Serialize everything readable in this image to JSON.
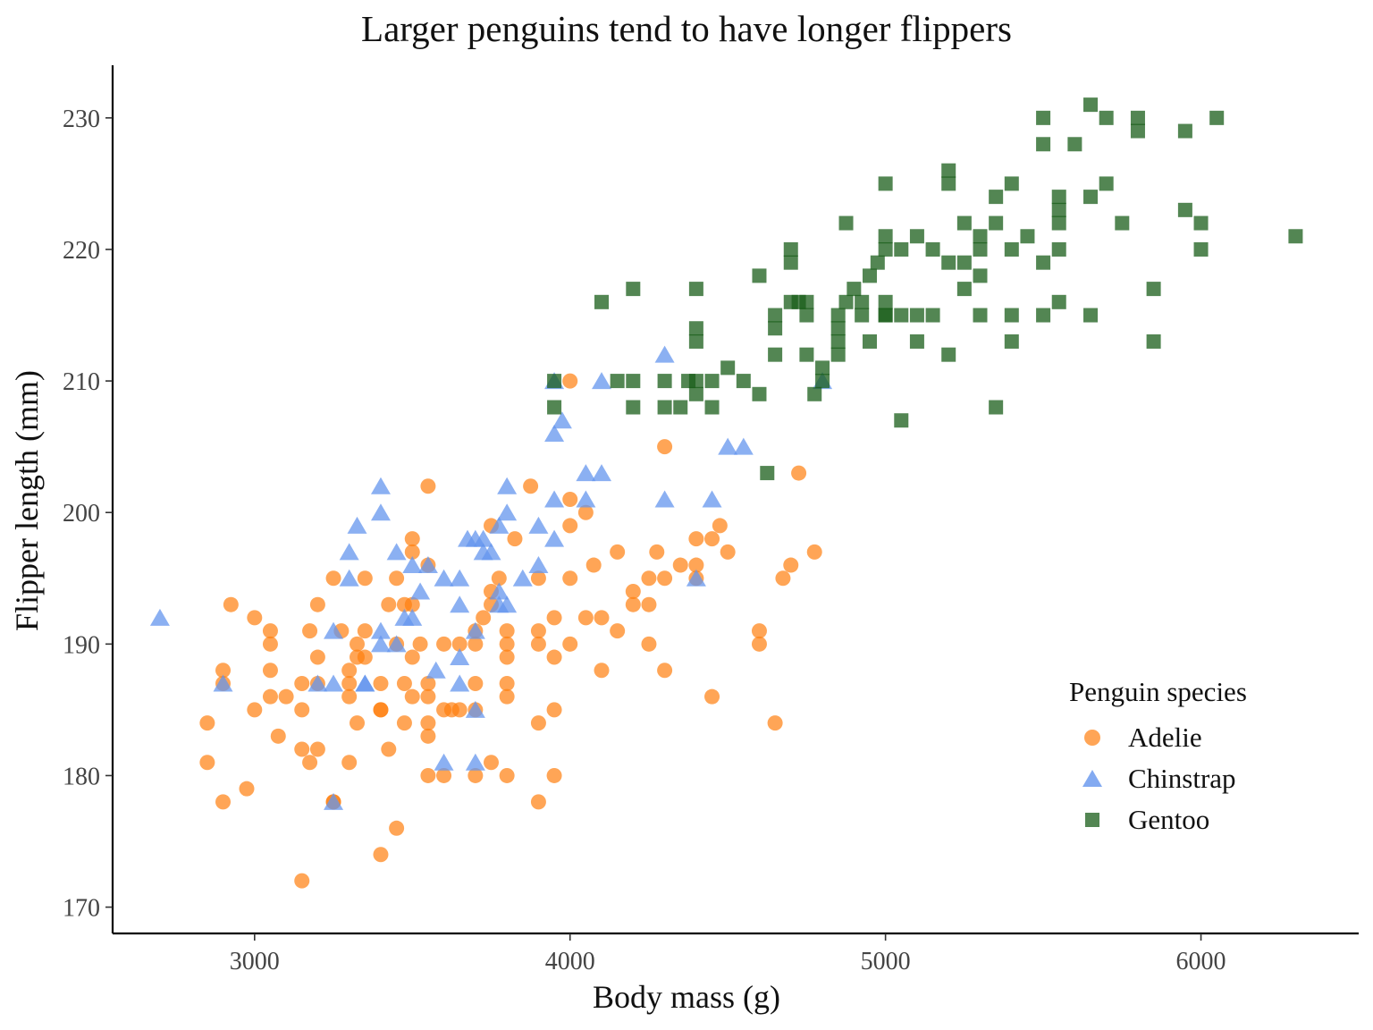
{
  "chart_data": {
    "type": "scatter",
    "title": "Larger penguins tend to have longer flippers",
    "xlabel": "Body mass (g)",
    "ylabel": "Flipper length (mm)",
    "xlim": [
      2550,
      6500
    ],
    "ylim": [
      168,
      234
    ],
    "xticks": [
      3000,
      4000,
      5000,
      6000
    ],
    "yticks": [
      170,
      180,
      190,
      200,
      210,
      220,
      230
    ],
    "grid": false,
    "legend": {
      "title": "Penguin species",
      "placement": "bottom-right"
    },
    "series": [
      {
        "name": "Adelie",
        "marker": "circle",
        "color": "#FF7F0E",
        "x": [
          2850,
          2850,
          2900,
          2900,
          2900,
          2925,
          2975,
          3000,
          3000,
          3050,
          3050,
          3050,
          3050,
          3075,
          3100,
          3150,
          3150,
          3150,
          3150,
          3175,
          3175,
          3200,
          3200,
          3200,
          3200,
          3250,
          3250,
          3250,
          3275,
          3300,
          3300,
          3300,
          3300,
          3325,
          3325,
          3325,
          3350,
          3350,
          3350,
          3400,
          3400,
          3400,
          3400,
          3425,
          3425,
          3450,
          3450,
          3450,
          3475,
          3475,
          3475,
          3500,
          3500,
          3500,
          3500,
          3500,
          3525,
          3550,
          3550,
          3550,
          3550,
          3550,
          3550,
          3550,
          3600,
          3600,
          3600,
          3625,
          3650,
          3650,
          3700,
          3700,
          3700,
          3700,
          3700,
          3725,
          3750,
          3750,
          3750,
          3750,
          3775,
          3800,
          3800,
          3800,
          3800,
          3800,
          3800,
          3825,
          3875,
          3900,
          3900,
          3900,
          3900,
          3900,
          3950,
          3950,
          3950,
          3950,
          4000,
          4000,
          4000,
          4000,
          4000,
          4050,
          4050,
          4075,
          4100,
          4100,
          4150,
          4150,
          4200,
          4200,
          4250,
          4250,
          4250,
          4275,
          4300,
          4300,
          4300,
          4350,
          4400,
          4400,
          4400,
          4450,
          4450,
          4475,
          4500,
          4600,
          4600,
          4650,
          4675,
          4700,
          4725,
          4775
        ],
        "y": [
          184,
          181,
          188,
          187,
          178,
          193,
          179,
          192,
          185,
          191,
          190,
          186,
          188,
          183,
          186,
          187,
          185,
          182,
          172,
          191,
          181,
          193,
          189,
          187,
          182,
          195,
          178,
          178,
          191,
          188,
          187,
          181,
          186,
          190,
          189,
          184,
          195,
          191,
          189,
          185,
          187,
          185,
          174,
          193,
          182,
          195,
          190,
          176,
          193,
          187,
          184,
          198,
          197,
          193,
          189,
          186,
          190,
          202,
          196,
          187,
          186,
          184,
          183,
          180,
          190,
          185,
          180,
          185,
          190,
          185,
          191,
          190,
          187,
          185,
          180,
          192,
          199,
          194,
          193,
          181,
          195,
          191,
          189,
          187,
          186,
          180,
          190,
          198,
          202,
          195,
          191,
          190,
          184,
          178,
          192,
          189,
          185,
          180,
          210,
          201,
          199,
          195,
          190,
          200,
          192,
          196,
          192,
          188,
          197,
          191,
          194,
          193,
          195,
          193,
          190,
          197,
          205,
          195,
          188,
          196,
          198,
          196,
          195,
          198,
          186,
          199,
          197,
          191,
          190,
          184,
          195,
          196,
          203,
          197
        ]
      },
      {
        "name": "Chinstrap",
        "marker": "triangle",
        "color": "#6495ED",
        "x": [
          2700,
          2900,
          3200,
          3250,
          3250,
          3250,
          3300,
          3300,
          3325,
          3350,
          3350,
          3400,
          3400,
          3400,
          3400,
          3450,
          3450,
          3475,
          3500,
          3500,
          3525,
          3550,
          3575,
          3600,
          3600,
          3650,
          3650,
          3650,
          3650,
          3675,
          3700,
          3700,
          3700,
          3700,
          3725,
          3725,
          3750,
          3775,
          3775,
          3775,
          3800,
          3800,
          3800,
          3850,
          3900,
          3900,
          3950,
          3950,
          3950,
          3950,
          3975,
          4050,
          4050,
          4100,
          4100,
          4300,
          4300,
          4400,
          4450,
          4500,
          4550,
          4800
        ],
        "y": [
          192,
          187,
          187,
          191,
          187,
          178,
          197,
          195,
          199,
          187,
          187,
          202,
          200,
          191,
          190,
          197,
          190,
          192,
          196,
          192,
          194,
          196,
          188,
          195,
          181,
          195,
          193,
          189,
          187,
          198,
          198,
          191,
          185,
          181,
          198,
          197,
          197,
          199,
          194,
          193,
          202,
          200,
          193,
          195,
          199,
          196,
          210,
          206,
          201,
          198,
          207,
          203,
          201,
          210,
          203,
          212,
          201,
          195,
          201,
          205,
          205,
          210
        ]
      },
      {
        "name": "Gentoo",
        "marker": "square",
        "color": "#1A5E1A",
        "x": [
          3950,
          3950,
          4100,
          4150,
          4200,
          4200,
          4200,
          4300,
          4300,
          4350,
          4375,
          4400,
          4400,
          4400,
          4400,
          4400,
          4450,
          4450,
          4500,
          4550,
          4600,
          4600,
          4625,
          4650,
          4650,
          4650,
          4700,
          4700,
          4700,
          4725,
          4750,
          4750,
          4750,
          4775,
          4800,
          4800,
          4850,
          4850,
          4850,
          4850,
          4875,
          4875,
          4900,
          4925,
          4925,
          4950,
          4950,
          4975,
          5000,
          5000,
          5000,
          5000,
          5000,
          5000,
          5050,
          5050,
          5050,
          5100,
          5100,
          5100,
          5150,
          5150,
          5200,
          5200,
          5200,
          5200,
          5250,
          5250,
          5250,
          5300,
          5300,
          5300,
          5300,
          5350,
          5350,
          5350,
          5400,
          5400,
          5400,
          5400,
          5450,
          5500,
          5500,
          5500,
          5500,
          5550,
          5550,
          5550,
          5550,
          5550,
          5600,
          5650,
          5650,
          5650,
          5700,
          5700,
          5750,
          5800,
          5800,
          5850,
          5850,
          5950,
          5950,
          6000,
          6000,
          6050,
          6300
        ],
        "y": [
          208,
          210,
          216,
          210,
          210,
          217,
          208,
          208,
          210,
          208,
          210,
          213,
          214,
          210,
          209,
          217,
          208,
          210,
          211,
          210,
          209,
          218,
          203,
          214,
          212,
          215,
          216,
          219,
          220,
          216,
          212,
          215,
          216,
          209,
          211,
          210,
          212,
          213,
          214,
          215,
          216,
          222,
          217,
          216,
          215,
          218,
          213,
          219,
          220,
          221,
          215,
          215,
          216,
          225,
          220,
          215,
          207,
          213,
          215,
          221,
          215,
          220,
          225,
          226,
          212,
          219,
          217,
          222,
          219,
          220,
          215,
          218,
          221,
          224,
          222,
          208,
          215,
          213,
          220,
          225,
          221,
          219,
          228,
          215,
          230,
          220,
          223,
          222,
          224,
          216,
          228,
          224,
          215,
          231,
          230,
          225,
          222,
          230,
          229,
          213,
          217,
          229,
          223,
          220,
          222,
          230,
          221
        ]
      }
    ]
  }
}
